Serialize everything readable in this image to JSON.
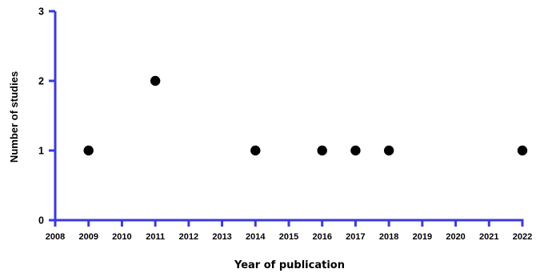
{
  "chart_data": {
    "type": "scatter",
    "title": "",
    "xlabel": "Year of publication",
    "ylabel": "Number of studies",
    "xlim": [
      2008,
      2022
    ],
    "ylim": [
      0,
      3
    ],
    "x_ticks": [
      "2008",
      "2009",
      "2010",
      "2011",
      "2012",
      "2013",
      "2014",
      "2015",
      "2016",
      "2017",
      "2018",
      "2019",
      "2020",
      "2021",
      "2022"
    ],
    "y_ticks": [
      "0",
      "1",
      "2",
      "3"
    ],
    "grid": false,
    "axis_color": "#3a3ae0",
    "marker_color": "#000000",
    "points": [
      {
        "x": 2009,
        "y": 1
      },
      {
        "x": 2011,
        "y": 2
      },
      {
        "x": 2014,
        "y": 1
      },
      {
        "x": 2016,
        "y": 1
      },
      {
        "x": 2017,
        "y": 1
      },
      {
        "x": 2018,
        "y": 1
      },
      {
        "x": 2022,
        "y": 1
      }
    ]
  }
}
